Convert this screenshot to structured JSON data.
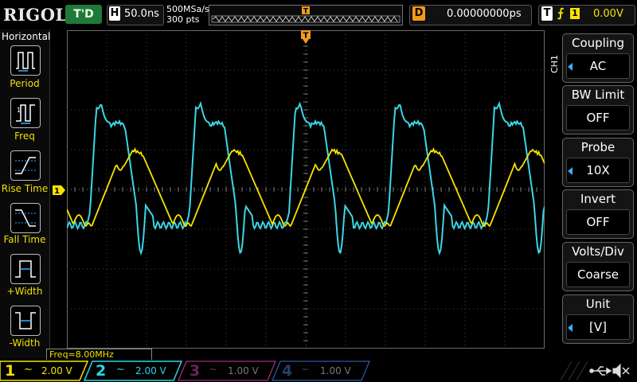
{
  "topbar": {
    "logo": "RIGOL",
    "status": "T'D",
    "horizontal_label": "H",
    "timebase": "50.0ns",
    "sample_rate": "500MSa/s",
    "points": "300 pts",
    "trigger_marker": "T",
    "delay_label": "D",
    "delay_value": "0.00000000ps",
    "trigger_label": "T",
    "trigger_source": "1",
    "trigger_level": "0.00V"
  },
  "left_menu": {
    "title": "Horizontal",
    "items": [
      {
        "label": "Period",
        "icon": "period-icon"
      },
      {
        "label": "Freq",
        "icon": "freq-icon"
      },
      {
        "label": "Rise Time",
        "icon": "rise-time-icon"
      },
      {
        "label": "Fall Time",
        "icon": "fall-time-icon"
      },
      {
        "label": "+Width",
        "icon": "positive-width-icon"
      },
      {
        "label": "-Width",
        "icon": "negative-width-icon"
      }
    ]
  },
  "right_menu": {
    "channel_label": "CH1",
    "items": [
      {
        "title": "Coupling",
        "value": "AC"
      },
      {
        "title": "BW Limit",
        "value": "OFF"
      },
      {
        "title": "Probe",
        "value": "10X"
      },
      {
        "title": "Invert",
        "value": "OFF"
      },
      {
        "title": "Volts/Div",
        "value": "Coarse"
      },
      {
        "title": "Unit",
        "value": "[V]"
      }
    ]
  },
  "measurement": {
    "freq": "Freq=8.00MHz"
  },
  "channel_marker": "1",
  "channels": [
    {
      "num": "1",
      "coupling": "~",
      "volts": "2.00 V",
      "color": "#f5e400",
      "active": true
    },
    {
      "num": "2",
      "coupling": "~",
      "volts": "2.00 V",
      "color": "#2ad6e6",
      "active": true
    },
    {
      "num": "3",
      "coupling": "~",
      "volts": "1.00 V",
      "color": "#c2389a",
      "active": false
    },
    {
      "num": "4",
      "coupling": "~",
      "volts": "1.00 V",
      "color": "#2c6fd6",
      "active": false
    }
  ],
  "colors": {
    "ch1": "#f5e400",
    "ch2": "#3ad6e6",
    "trigger": "#f29a1e",
    "status_green": "#1f7a3a",
    "highlight_blue": "#3ab0ff"
  }
}
